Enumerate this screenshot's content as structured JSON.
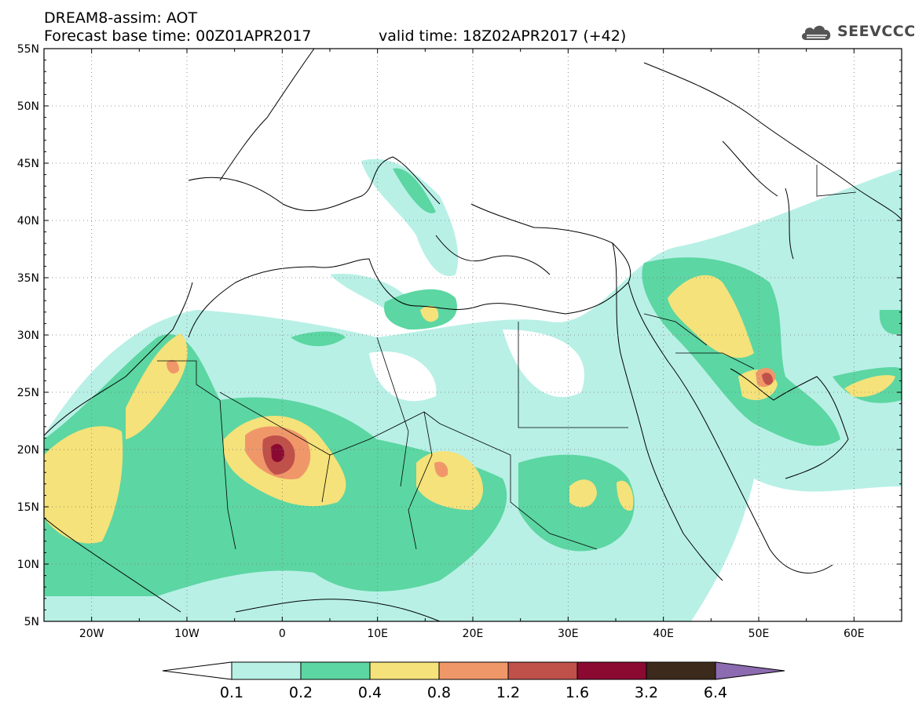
{
  "header": {
    "line1": "DREAM8-assim: AOT",
    "line2": "Forecast base time: 00Z01APR2017",
    "valid": "valid time: 18Z02APR2017 (+42)"
  },
  "logo": {
    "text": "SEEVCCC",
    "icon": "cloud-logo-icon"
  },
  "map": {
    "lat_labels": [
      "55N",
      "50N",
      "45N",
      "40N",
      "35N",
      "30N",
      "25N",
      "20N",
      "15N",
      "10N",
      "5N"
    ],
    "lon_labels": [
      "20W",
      "10W",
      "0",
      "10E",
      "20E",
      "30E",
      "40E",
      "50E",
      "60E"
    ],
    "lon_range": [
      -25,
      65
    ],
    "lat_range": [
      5,
      55
    ],
    "grid": "dotted"
  },
  "colorbar": {
    "labels": [
      "0.1",
      "0.2",
      "0.4",
      "0.8",
      "1.2",
      "1.6",
      "3.2",
      "6.4"
    ],
    "colors": [
      "#b8f0e6",
      "#5cd6a2",
      "#f5e27a",
      "#f0976a",
      "#c0504a",
      "#8b0a32",
      "#3c2a1c"
    ],
    "extend_low_color": "#ffffff",
    "extend_high_color": "#8c6bb1"
  }
}
